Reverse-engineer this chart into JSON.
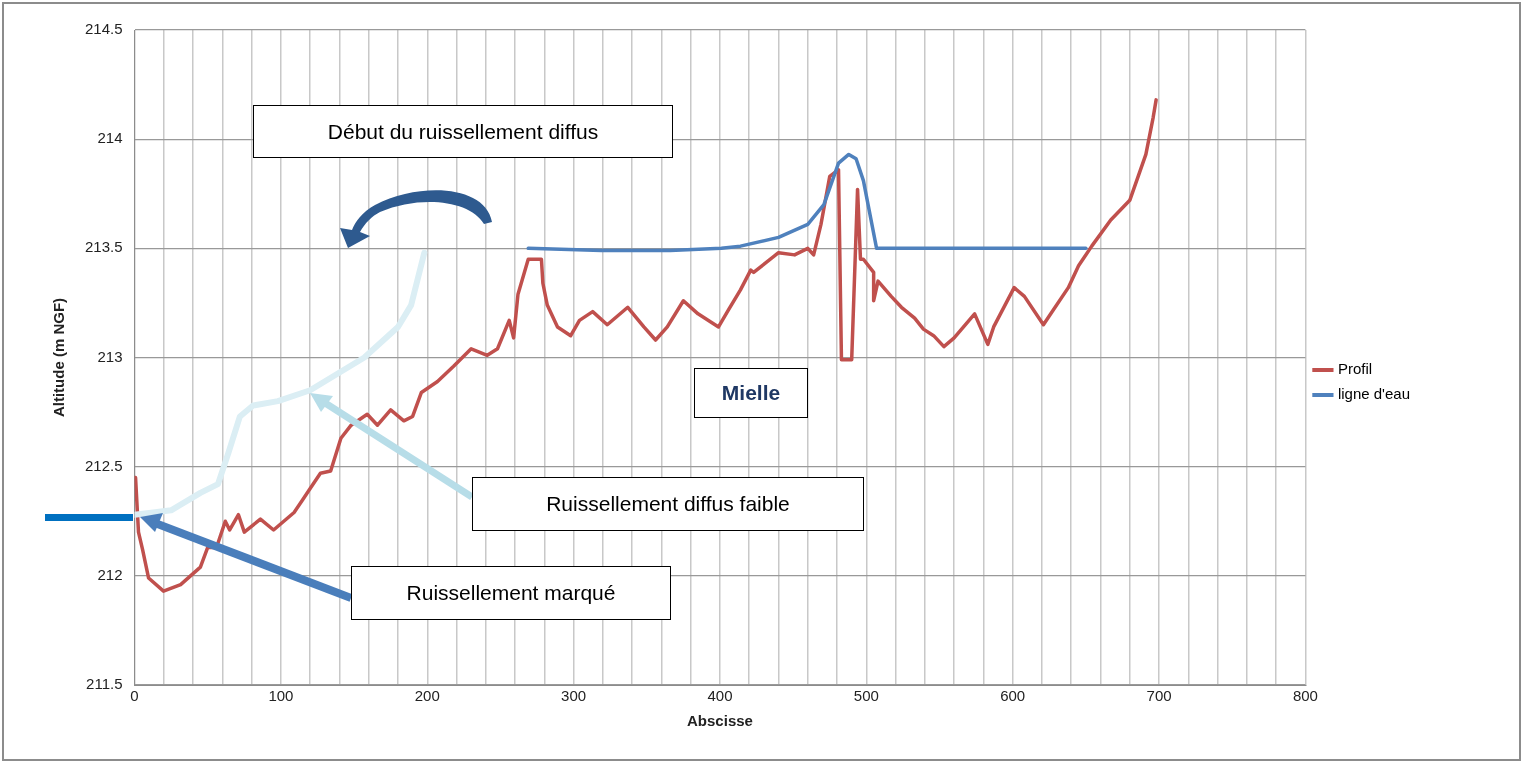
{
  "chart_data": {
    "type": "line",
    "xlabel": "Abscisse",
    "ylabel": "Altitude (m NGF)",
    "xlim": [
      0,
      800
    ],
    "ylim": [
      211.5,
      214.5
    ],
    "xticks": [
      0,
      {
        "value": 20,
        "label": null
      },
      {
        "value": 40,
        "label": null
      },
      {
        "value": 60,
        "label": null
      },
      {
        "value": 80,
        "label": null
      },
      100,
      {
        "value": 120,
        "label": null
      },
      {
        "value": 140,
        "label": null
      },
      {
        "value": 160,
        "label": null
      },
      {
        "value": 180,
        "label": null
      },
      200,
      {
        "value": 220,
        "label": null
      },
      {
        "value": 240,
        "label": null
      },
      {
        "value": 260,
        "label": null
      },
      {
        "value": 280,
        "label": null
      },
      300,
      {
        "value": 320,
        "label": null
      },
      {
        "value": 340,
        "label": null
      },
      {
        "value": 360,
        "label": null
      },
      {
        "value": 380,
        "label": null
      },
      400,
      {
        "value": 420,
        "label": null
      },
      {
        "value": 440,
        "label": null
      },
      {
        "value": 460,
        "label": null
      },
      {
        "value": 480,
        "label": null
      },
      500,
      {
        "value": 520,
        "label": null
      },
      {
        "value": 540,
        "label": null
      },
      {
        "value": 560,
        "label": null
      },
      {
        "value": 580,
        "label": null
      },
      600,
      {
        "value": 620,
        "label": null
      },
      {
        "value": 640,
        "label": null
      },
      {
        "value": 660,
        "label": null
      },
      {
        "value": 680,
        "label": null
      },
      700,
      {
        "value": 720,
        "label": null
      },
      {
        "value": 740,
        "label": null
      },
      {
        "value": 760,
        "label": null
      },
      {
        "value": 780,
        "label": null
      },
      800
    ],
    "yticks": [
      211.5,
      212,
      212.5,
      213,
      213.5,
      214,
      214.5
    ],
    "grid": true,
    "legend": "right",
    "marker": "none",
    "line_style": "solid",
    "series": [
      {
        "name": "Profil",
        "color": "#c0504d",
        "x": [
          0,
          0.7,
          2.7,
          5.5,
          9.6,
          19.8,
          31.5,
          45,
          50,
          56,
          62,
          65,
          71,
          75,
          86,
          95,
          109,
          115,
          120,
          127,
          134,
          141,
          148,
          159,
          166,
          175,
          184,
          190,
          196,
          207,
          218,
          230,
          241,
          248,
          256,
          259,
          262,
          269,
          278,
          279,
          282,
          289,
          298,
          304,
          313,
          323,
          337,
          348,
          356,
          364,
          375,
          385,
          399,
          406,
          414,
          421,
          423,
          440,
          451,
          460,
          464,
          469,
          475,
          481,
          483,
          490,
          494,
          496,
          498,
          505,
          505,
          508,
          517,
          524,
          533,
          539,
          546,
          553,
          560,
          574,
          583,
          587,
          601,
          608,
          621,
          626,
          638,
          645,
          654,
          667,
          680,
          691,
          696,
          698
        ],
        "values": [
          212.45,
          212.45,
          212.2,
          212.12,
          211.99,
          211.93,
          211.96,
          212.04,
          212.13,
          212.13,
          212.25,
          212.21,
          212.28,
          212.2,
          212.26,
          212.21,
          212.29,
          212.35,
          212.4,
          212.47,
          212.48,
          212.63,
          212.69,
          212.74,
          212.69,
          212.76,
          212.71,
          212.73,
          212.84,
          212.89,
          212.96,
          213.04,
          213.01,
          213.04,
          213.17,
          213.09,
          213.29,
          213.45,
          213.45,
          213.34,
          213.24,
          213.14,
          213.1,
          213.17,
          213.21,
          213.15,
          213.23,
          213.14,
          213.08,
          213.14,
          213.26,
          213.2,
          213.14,
          213.22,
          213.31,
          213.4,
          213.39,
          213.48,
          213.47,
          213.5,
          213.47,
          213.61,
          213.83,
          213.86,
          212.99,
          212.99,
          213.77,
          213.45,
          213.45,
          213.39,
          213.26,
          213.35,
          213.28,
          213.23,
          213.18,
          213.13,
          213.1,
          213.05,
          213.09,
          213.2,
          213.06,
          213.14,
          213.32,
          213.28,
          213.15,
          213.2,
          213.32,
          213.42,
          213.51,
          213.63,
          213.72,
          213.93,
          214.1,
          214.18
        ]
      },
      {
        "name": "ligne d'eau",
        "color": "#4f81bd",
        "x": [
          269,
          319,
          366,
          401,
          414,
          440,
          460,
          471,
          481,
          488,
          493,
          498,
          507,
          519,
          650
        ],
        "values": [
          213.5,
          213.49,
          213.49,
          213.5,
          213.51,
          213.55,
          213.61,
          213.7,
          213.89,
          213.93,
          213.91,
          213.81,
          213.5,
          213.5,
          213.5
        ]
      },
      {
        "color": "#dbeef4",
        "x": [
          0,
          25,
          45,
          57,
          64,
          72,
          81,
          98,
          120,
          157,
          180,
          189,
          198
        ],
        "values": [
          212.28,
          212.3,
          212.38,
          212.42,
          212.56,
          212.73,
          212.78,
          212.8,
          212.85,
          213.0,
          213.14,
          213.24,
          213.48
        ]
      }
    ],
    "annotations": [
      "Début du ruissellement diffus",
      "Mielle",
      "Ruissellement diffus faible",
      "Ruissellement marqué"
    ]
  }
}
